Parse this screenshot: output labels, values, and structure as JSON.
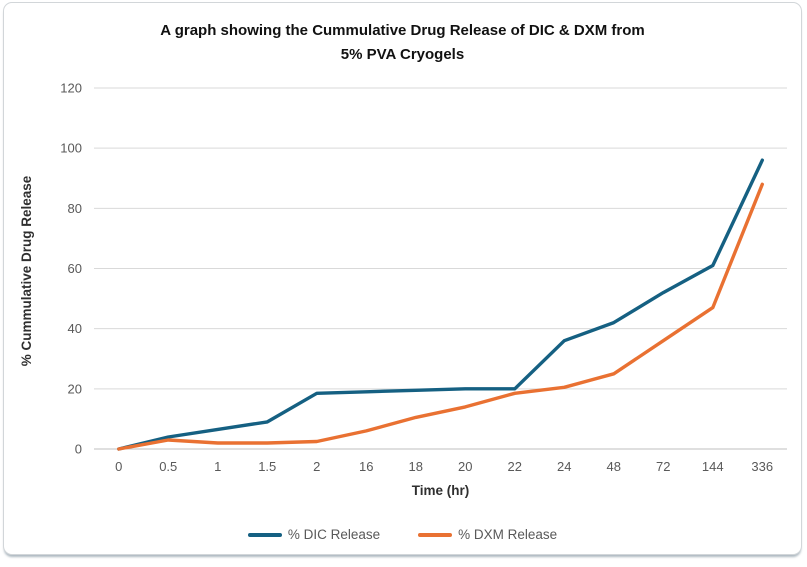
{
  "chart": {
    "title_lines": [
      "A graph showing the Cummulative Drug Release of DIC & DXM from",
      "5% PVA Cryogels"
    ]
  },
  "chart_data": {
    "type": "line",
    "title": "A graph showing the Cummulative Drug Release of DIC & DXM from 5% PVA Cryogels",
    "xlabel": "Time (hr)",
    "ylabel": "% Cummulative Drug Release",
    "categories": [
      "0",
      "0.5",
      "1",
      "1.5",
      "2",
      "16",
      "18",
      "20",
      "22",
      "24",
      "48",
      "72",
      "144",
      "336"
    ],
    "series": [
      {
        "name": "% DIC Release",
        "color": "#156082",
        "values": [
          0,
          4,
          6.5,
          9,
          18.5,
          19,
          19.5,
          20,
          20,
          36,
          42,
          52,
          61,
          96
        ]
      },
      {
        "name": "% DXM Release",
        "color": "#E97132",
        "values": [
          0,
          3,
          2,
          2,
          2.5,
          6,
          10.5,
          14,
          18.5,
          20.5,
          25,
          36,
          47,
          88
        ]
      }
    ],
    "ylim": [
      0,
      120
    ],
    "yticks": [
      0,
      20,
      40,
      60,
      80,
      100,
      120
    ],
    "grid": "horizontal-only",
    "gridline_color": "#d9d9d9",
    "axis_line_color": "#bfbfbf",
    "tick_label_color": "#595959",
    "legend_position": "bottom"
  }
}
